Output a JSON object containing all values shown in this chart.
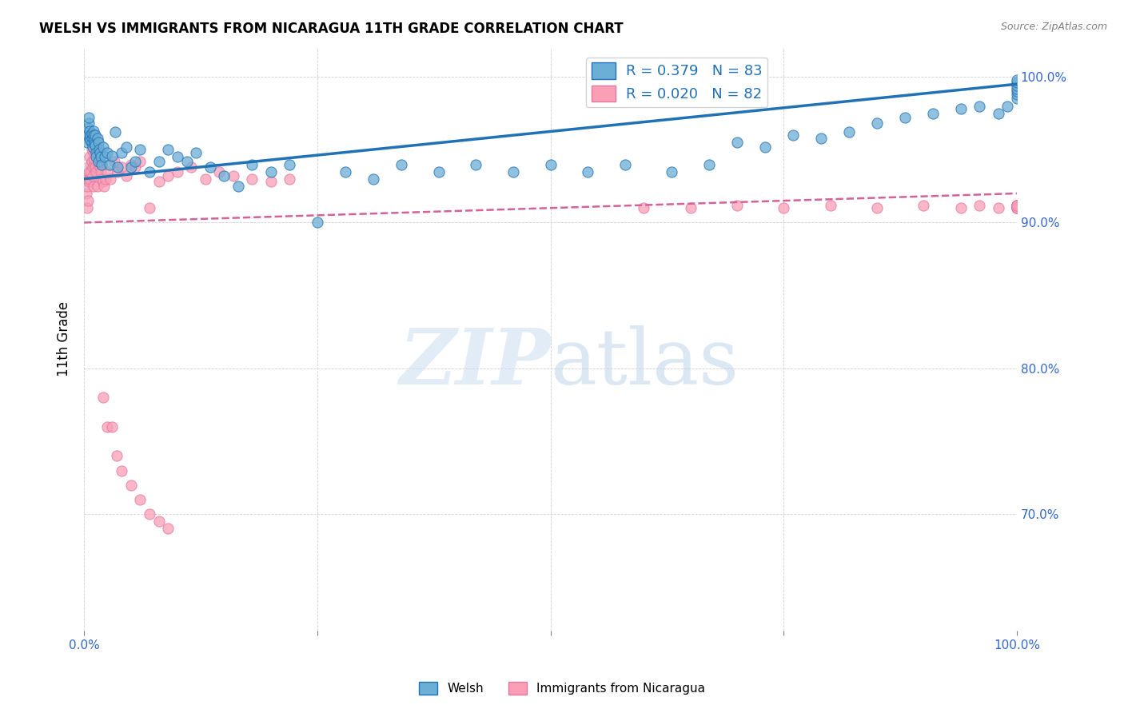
{
  "title": "WELSH VS IMMIGRANTS FROM NICARAGUA 11TH GRADE CORRELATION CHART",
  "source": "Source: ZipAtlas.com",
  "ylabel": "11th Grade",
  "xlim": [
    0.0,
    1.0
  ],
  "ylim": [
    0.62,
    1.02
  ],
  "ytick_labels": [
    "70.0%",
    "80.0%",
    "90.0%",
    "100.0%"
  ],
  "ytick_values": [
    0.7,
    0.8,
    0.9,
    1.0
  ],
  "xtick_values": [
    0.0,
    0.25,
    0.5,
    0.75,
    1.0
  ],
  "R_welsh": 0.379,
  "N_welsh": 83,
  "R_nicaragua": 0.02,
  "N_nicaragua": 82,
  "legend_label_welsh": "Welsh",
  "legend_label_nicaragua": "Immigrants from Nicaragua",
  "color_welsh": "#6baed6",
  "color_nicaragua": "#fa9fb5",
  "color_trend_welsh": "#2171b5",
  "color_trend_nicaragua": "#d4619a",
  "welsh_x": [
    0.002,
    0.003,
    0.004,
    0.005,
    0.005,
    0.006,
    0.006,
    0.007,
    0.007,
    0.008,
    0.008,
    0.009,
    0.009,
    0.01,
    0.01,
    0.011,
    0.011,
    0.012,
    0.012,
    0.013,
    0.013,
    0.014,
    0.015,
    0.015,
    0.016,
    0.017,
    0.018,
    0.019,
    0.02,
    0.022,
    0.025,
    0.027,
    0.03,
    0.033,
    0.036,
    0.04,
    0.045,
    0.05,
    0.055,
    0.06,
    0.07,
    0.08,
    0.09,
    0.1,
    0.11,
    0.12,
    0.135,
    0.15,
    0.165,
    0.18,
    0.2,
    0.22,
    0.25,
    0.28,
    0.31,
    0.34,
    0.38,
    0.42,
    0.46,
    0.5,
    0.54,
    0.58,
    0.63,
    0.67,
    0.7,
    0.73,
    0.76,
    0.79,
    0.82,
    0.85,
    0.88,
    0.91,
    0.94,
    0.96,
    0.98,
    0.99,
    1.0,
    1.0,
    1.0,
    1.0,
    1.0,
    1.0,
    1.0
  ],
  "welsh_y": [
    0.96,
    0.955,
    0.965,
    0.968,
    0.972,
    0.958,
    0.963,
    0.96,
    0.956,
    0.961,
    0.955,
    0.952,
    0.958,
    0.963,
    0.96,
    0.957,
    0.954,
    0.96,
    0.953,
    0.948,
    0.945,
    0.958,
    0.942,
    0.955,
    0.95,
    0.948,
    0.945,
    0.94,
    0.952,
    0.945,
    0.948,
    0.94,
    0.946,
    0.962,
    0.938,
    0.948,
    0.952,
    0.938,
    0.942,
    0.95,
    0.935,
    0.942,
    0.95,
    0.945,
    0.942,
    0.948,
    0.938,
    0.932,
    0.925,
    0.94,
    0.935,
    0.94,
    0.9,
    0.935,
    0.93,
    0.94,
    0.935,
    0.94,
    0.935,
    0.94,
    0.935,
    0.94,
    0.935,
    0.94,
    0.955,
    0.952,
    0.96,
    0.958,
    0.962,
    0.968,
    0.972,
    0.975,
    0.978,
    0.98,
    0.975,
    0.98,
    0.985,
    0.988,
    0.99,
    0.992,
    0.994,
    0.996,
    0.998
  ],
  "nicaragua_x": [
    0.002,
    0.003,
    0.003,
    0.004,
    0.004,
    0.005,
    0.005,
    0.006,
    0.006,
    0.007,
    0.007,
    0.008,
    0.008,
    0.009,
    0.009,
    0.01,
    0.01,
    0.011,
    0.011,
    0.012,
    0.013,
    0.013,
    0.014,
    0.015,
    0.016,
    0.017,
    0.018,
    0.019,
    0.02,
    0.021,
    0.023,
    0.025,
    0.028,
    0.032,
    0.036,
    0.04,
    0.045,
    0.05,
    0.055,
    0.06,
    0.07,
    0.08,
    0.09,
    0.1,
    0.115,
    0.13,
    0.145,
    0.16,
    0.18,
    0.2,
    0.22,
    0.02,
    0.025,
    0.03,
    0.035,
    0.04,
    0.05,
    0.06,
    0.07,
    0.08,
    0.09,
    0.6,
    0.65,
    0.7,
    0.75,
    0.8,
    0.85,
    0.9,
    0.94,
    0.96,
    0.98,
    1.0,
    1.0,
    1.0,
    1.0,
    1.0,
    1.0,
    1.0,
    1.0,
    1.0,
    1.0,
    1.0
  ],
  "nicaragua_y": [
    0.92,
    0.925,
    0.91,
    0.93,
    0.915,
    0.928,
    0.935,
    0.93,
    0.945,
    0.94,
    0.935,
    0.942,
    0.95,
    0.938,
    0.932,
    0.948,
    0.925,
    0.94,
    0.943,
    0.938,
    0.935,
    0.948,
    0.925,
    0.94,
    0.943,
    0.938,
    0.935,
    0.93,
    0.928,
    0.925,
    0.93,
    0.935,
    0.93,
    0.942,
    0.935,
    0.938,
    0.932,
    0.94,
    0.938,
    0.942,
    0.91,
    0.928,
    0.932,
    0.935,
    0.938,
    0.93,
    0.935,
    0.932,
    0.93,
    0.928,
    0.93,
    0.78,
    0.76,
    0.76,
    0.74,
    0.73,
    0.72,
    0.71,
    0.7,
    0.695,
    0.69,
    0.91,
    0.91,
    0.912,
    0.91,
    0.912,
    0.91,
    0.912,
    0.91,
    0.912,
    0.91,
    0.912,
    0.91,
    0.912,
    0.91,
    0.912,
    0.91,
    0.912,
    0.91,
    0.912,
    0.91,
    0.912
  ]
}
